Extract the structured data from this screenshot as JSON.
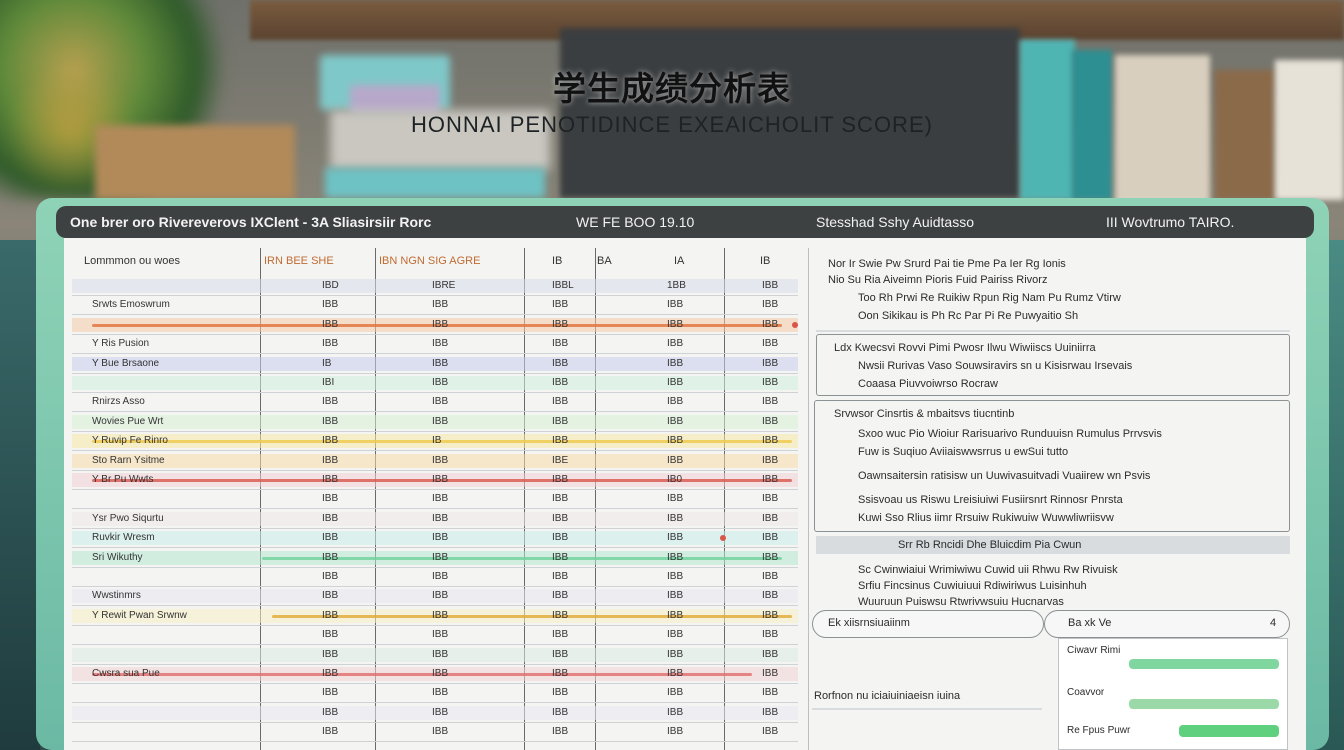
{
  "headline": {
    "title": "学生成绩分析表",
    "subtitle": "HONNAI PENOTIDINCE EXEAICHOLIT SCORE)"
  },
  "window": {
    "title_left": "One brer oro Rivereverovs IXClent - 3A Sliasirsiir Rorc",
    "title_mid": "WE FE BOO 19.10",
    "title_right": "Stesshad Sshy Auidtasso",
    "title_far": "III Wovtrumo TAIRO."
  },
  "table": {
    "headers": [
      "Lommmon ou woes",
      "IRN BEE SHE",
      "IBN NGN SIG AGRE",
      "IB",
      "IBA",
      "IA",
      "IB"
    ],
    "rows": [
      {
        "name": "",
        "c1": "IBD",
        "c2": "IBRE",
        "c3": "IBBL",
        "c4": "1BB",
        "c5": "IBB",
        "band": "#d8dbea"
      },
      {
        "name": "Srwts Emoswrum",
        "c1": "IBB",
        "c2": "IBB",
        "c3": "IBB",
        "c4": "IBB",
        "c5": "IBB",
        "band": ""
      },
      {
        "name": "",
        "c1": "IBB",
        "c2": "IBB",
        "c3": "IBB",
        "c4": "IBB",
        "c5": "IBB",
        "band": "#f4c9a6"
      },
      {
        "name": "Y Ris Pusion",
        "c1": "IBB",
        "c2": "IBB",
        "c3": "IBB",
        "c4": "IBB",
        "c5": "IBB",
        "band": ""
      },
      {
        "name": "Y Bue Brsaone",
        "c1": "IB",
        "c2": "IBB",
        "c3": "IBB",
        "c4": "IBB",
        "c5": "IBB",
        "band": "#c9ccec"
      },
      {
        "name": "",
        "c1": "IBI",
        "c2": "IBB",
        "c3": "IBB",
        "c4": "IBB",
        "c5": "IBB",
        "band": "#cfeedd"
      },
      {
        "name": "Rnirzs Asso",
        "c1": "IBB",
        "c2": "IBB",
        "c3": "IBB",
        "c4": "IBB",
        "c5": "IBB",
        "band": ""
      },
      {
        "name": "Wovies Pue Wrt",
        "c1": "IBB",
        "c2": "IBB",
        "c3": "IBB",
        "c4": "IBB",
        "c5": "IBB",
        "band": "#d7eed4"
      },
      {
        "name": "Y Ruvip Fe Rinro",
        "c1": "IBB",
        "c2": "IB",
        "c3": "IBB",
        "c4": "IBB",
        "c5": "IBB",
        "band": "#f7e7a6"
      },
      {
        "name": "Sto Rarn Ysitme",
        "c1": "IBB",
        "c2": "IBB",
        "c3": "IBE",
        "c4": "IBB",
        "c5": "IBB",
        "band": "#f7d8a8"
      },
      {
        "name": "Y Br Pu Wwts",
        "c1": "IBB",
        "c2": "IBB",
        "c3": "IBB",
        "c4": "IB0",
        "c5": "IBB",
        "band": "#f3cdd6"
      },
      {
        "name": "",
        "c1": "IBB",
        "c2": "IBB",
        "c3": "IBB",
        "c4": "IBB",
        "c5": "IBB",
        "band": ""
      },
      {
        "name": "Ysr Pwo Siqurtu",
        "c1": "IBB",
        "c2": "IBB",
        "c3": "IBB",
        "c4": "IBB",
        "c5": "IBB",
        "band": "#f0e6e8"
      },
      {
        "name": "Ruvkir Wresm",
        "c1": "IBB",
        "c2": "IBB",
        "c3": "IBB",
        "c4": "IBB",
        "c5": "IBB",
        "band": "#c9ece7"
      },
      {
        "name": "Sri Wikuthy",
        "c1": "IBB",
        "c2": "IBB",
        "c3": "IBB",
        "c4": "IBB",
        "c5": "IBB",
        "band": "#b5e6cf"
      },
      {
        "name": "",
        "c1": "IBB",
        "c2": "IBB",
        "c3": "IBB",
        "c4": "IBB",
        "c5": "IBB",
        "band": ""
      },
      {
        "name": "Wwstinmrs",
        "c1": "IBB",
        "c2": "IBB",
        "c3": "IBB",
        "c4": "IBB",
        "c5": "IBB",
        "band": "#e6e3ee"
      },
      {
        "name": "Y Rewit Pwan Srwnw",
        "c1": "IBB",
        "c2": "IBB",
        "c3": "IBB",
        "c4": "IBB",
        "c5": "IBB",
        "band": "#f6efc2"
      },
      {
        "name": "",
        "c1": "IBB",
        "c2": "IBB",
        "c3": "IBB",
        "c4": "IBB",
        "c5": "IBB",
        "band": ""
      },
      {
        "name": "",
        "c1": "IBB",
        "c2": "IBB",
        "c3": "IBB",
        "c4": "IBB",
        "c5": "IBB",
        "band": "#dbe9e1"
      },
      {
        "name": "Cwsra sua Pue",
        "c1": "IBB",
        "c2": "IBB",
        "c3": "IBB",
        "c4": "IBB",
        "c5": "IBB",
        "band": "#f1d3d3"
      },
      {
        "name": "",
        "c1": "IBB",
        "c2": "IBB",
        "c3": "IBB",
        "c4": "IBB",
        "c5": "IBB",
        "band": ""
      },
      {
        "name": "",
        "c1": "IBB",
        "c2": "IBB",
        "c3": "IBB",
        "c4": "IBB",
        "c5": "IBB",
        "band": "#e9e5f1"
      },
      {
        "name": "",
        "c1": "IBB",
        "c2": "IBB",
        "c3": "IBB",
        "c4": "IBB",
        "c5": "IBB",
        "band": ""
      }
    ]
  },
  "right_pane": {
    "block1": [
      "Nor Ir Swie Pw Srurd Pai tie Pme Pa Ier Rg Ionis",
      "Nio Su Ria Aiveimn Pioris Fuid Pairiss Rivorz",
      "Too Rh Prwi Re Ruikiw Rpun Rig Nam Pu Rumz Vtirw",
      "Oon Sikikau is Ph Rc Par Pi Re Puwyaitio Sh"
    ],
    "block2": [
      "Ldx Kwecsvi Rovvi Pimi Pwosr Ilwu Wiwiiscs Uuiniirra",
      "Nwsii Rurivas Vaso Souwsiravirs sn u Kisisrwau Irsevais",
      "Coaasa Piuvvoiwrso Rocraw"
    ],
    "block3": [
      "Srvwsor Cinsrtis & mbaitsvs tiucntinb",
      "Sxoo wuc Pio Wioiur Rarisuarivo Runduuisn Rumulus Prrvsvis",
      "Fuw is Suqiuo Aviiaiswwsrrus u ewSui tutto",
      "Oawnsaitersin ratisisw un Uuwivasuitvadi Vuaiirew wn Psvis",
      "Ssisvoau us Riswu Lreisiuiwi Fusiirsnrt Rinnosr Pnrsta",
      "Kuwi Sso Rlius iimr Rrsuiw Rukiwuiw Wuwwliwriisvw"
    ],
    "block4": [
      "Srr Rb Rncidi Dhe Bluicdim Pia Cwun"
    ],
    "block5": [
      "Sc Cwinwiaiui Wrimiwiwu Cuwid uii Rhwu Rw Rivuisk",
      "Srfiu Fincsinus Cuwiuiuui Rdiwiriwus Luisinhuh",
      "Wuuruun Puiswsu Rtwrivwsuiu Hucnarvas"
    ],
    "pill_left": "Ek xiisrnsiuaiinm",
    "pill_right": "Ba xk Ve",
    "pill_num": "4",
    "footer": "Rorfnon nu iciaiuiniaeisn iuina",
    "chart_labels": [
      "Ciwavr Rimi",
      "Coavvor",
      "Re Fpus Puwr"
    ]
  },
  "colors": {
    "panel": "#7cc6ad",
    "titlebar": "#3e4142",
    "accent_orange": "#e0703a",
    "accent_red": "#d8554a",
    "accent_green": "#7fd79f",
    "accent_yellow": "#f0c84a"
  }
}
